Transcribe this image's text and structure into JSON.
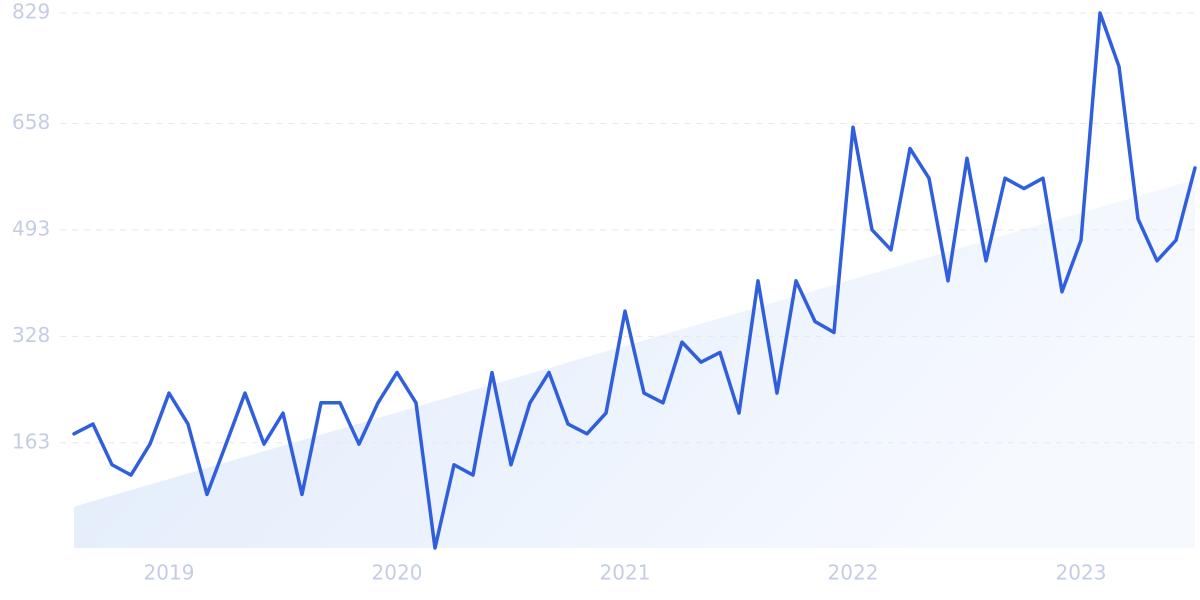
{
  "chart_data": {
    "type": "line",
    "color": "#2f5fdc",
    "grid": true,
    "ylim": [
      0,
      829
    ],
    "yticks": [
      163,
      328,
      493,
      658,
      829
    ],
    "categories": [
      null,
      null,
      null,
      null,
      null,
      "2019",
      null,
      null,
      null,
      null,
      null,
      null,
      null,
      null,
      null,
      null,
      null,
      "2020",
      null,
      null,
      null,
      null,
      null,
      null,
      null,
      null,
      null,
      null,
      null,
      "2021",
      null,
      null,
      null,
      null,
      null,
      null,
      null,
      null,
      null,
      null,
      null,
      "2022",
      null,
      null,
      null,
      null,
      null,
      null,
      null,
      null,
      null,
      null,
      null,
      "2023",
      null,
      null,
      null,
      null,
      null,
      null
    ],
    "values": [
      177,
      192,
      129,
      113,
      161,
      240,
      192,
      83,
      161,
      240,
      161,
      209,
      83,
      225,
      225,
      161,
      225,
      272,
      225,
      0,
      129,
      113,
      272,
      129,
      225,
      272,
      192,
      177,
      209,
      367,
      240,
      225,
      319,
      288,
      303,
      209,
      414,
      240,
      414,
      351,
      334,
      652,
      493,
      462,
      619,
      573,
      414,
      604,
      445,
      573,
      557,
      573,
      397,
      477,
      829,
      746,
      510,
      445,
      477,
      589
    ],
    "trend": [
      64,
      571
    ],
    "trend_color": "#dce8fb"
  }
}
